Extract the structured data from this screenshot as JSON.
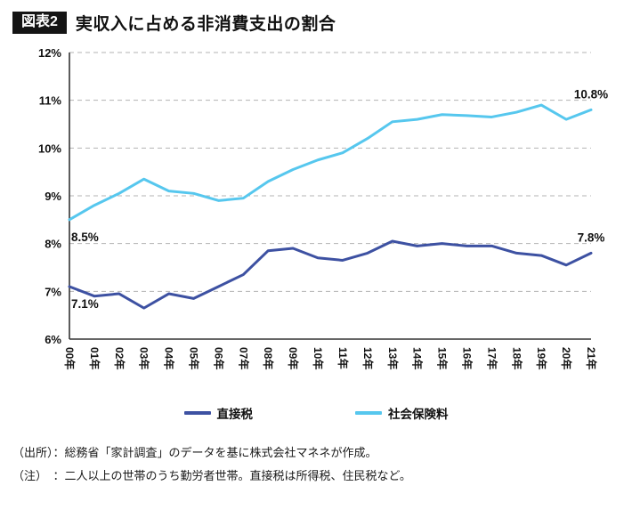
{
  "header": {
    "badge": "図表2",
    "title": "実収入に占める非消費支出の割合"
  },
  "chart_data": {
    "type": "line",
    "title": "実収入に占める非消費支出の割合",
    "xlabel": "",
    "ylabel": "",
    "ylim": [
      6,
      12
    ],
    "ytick_step": 1,
    "ytick_suffix": "%",
    "grid": "dashed-horizontal",
    "legend_position": "bottom",
    "categories": [
      "00年",
      "01年",
      "02年",
      "03年",
      "04年",
      "05年",
      "06年",
      "07年",
      "08年",
      "09年",
      "10年",
      "11年",
      "12年",
      "13年",
      "14年",
      "15年",
      "16年",
      "17年",
      "18年",
      "19年",
      "20年",
      "21年"
    ],
    "series": [
      {
        "name": "直接税",
        "color": "#3d51a2",
        "values": [
          7.1,
          6.9,
          6.95,
          6.65,
          6.95,
          6.85,
          7.1,
          7.35,
          7.85,
          7.9,
          7.7,
          7.65,
          7.8,
          8.05,
          7.95,
          8.0,
          7.95,
          7.95,
          7.8,
          7.75,
          7.55,
          7.8
        ]
      },
      {
        "name": "社会保険料",
        "color": "#56c7ee",
        "values": [
          8.5,
          8.8,
          9.05,
          9.35,
          9.1,
          9.05,
          8.9,
          8.95,
          9.3,
          9.55,
          9.75,
          9.9,
          10.2,
          10.55,
          10.6,
          10.7,
          10.68,
          10.65,
          10.75,
          10.9,
          10.6,
          10.8
        ]
      }
    ],
    "annotations": [
      {
        "text": "7.1%",
        "series": 0,
        "index": 0,
        "position": "below"
      },
      {
        "text": "7.8%",
        "series": 0,
        "index": 21,
        "position": "above"
      },
      {
        "text": "8.5%",
        "series": 1,
        "index": 0,
        "position": "below"
      },
      {
        "text": "10.8%",
        "series": 1,
        "index": 21,
        "position": "above"
      }
    ]
  },
  "footnotes": {
    "source": "（出所）：総務省「家計調査」のデータを基に株式会社マネネが作成。",
    "note": "（注）　：二人以上の世帯のうち勤労者世帯。直接税は所得税、住民税など。"
  }
}
